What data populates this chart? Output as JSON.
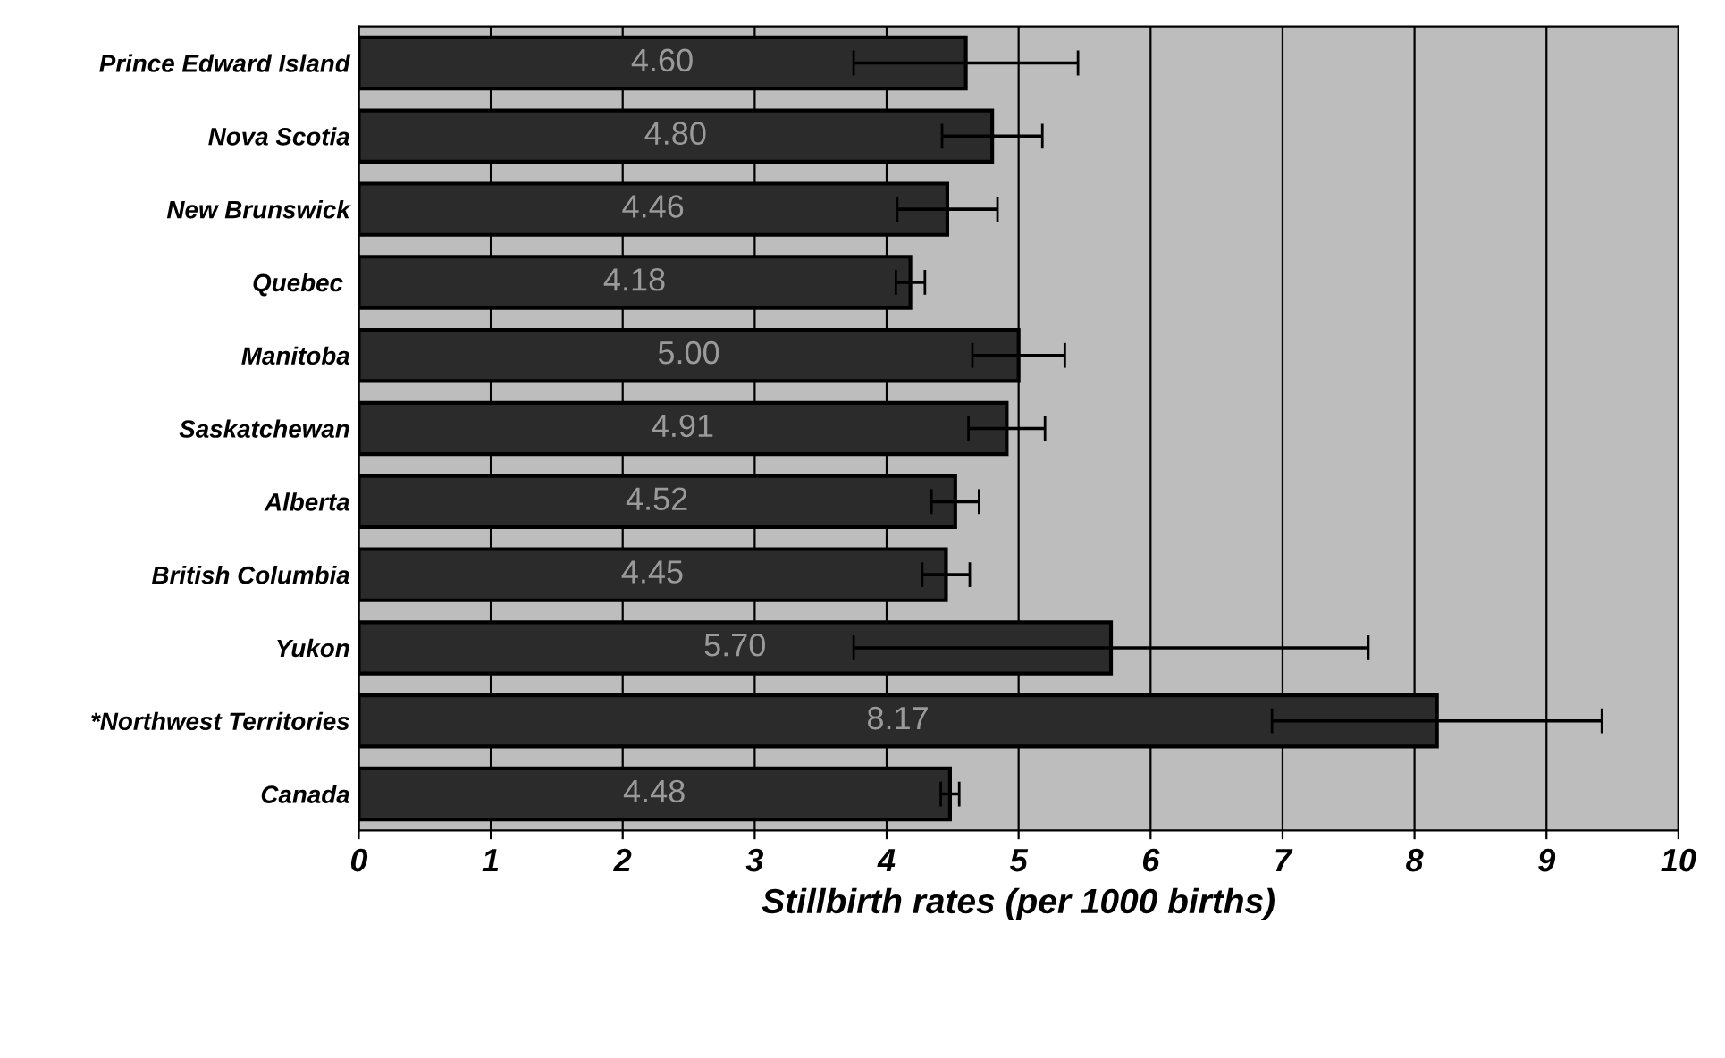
{
  "chart_data": {
    "type": "bar",
    "orientation": "horizontal",
    "xlabel": "Stillbirth rates (per 1000 births)",
    "categories": [
      "Prince Edward Island",
      "Nova Scotia",
      "New Brunswick",
      "Quebec ",
      "Manitoba",
      "Saskatchewan",
      "Alberta",
      "British Columbia",
      "Yukon",
      "*Northwest Territories",
      "Canada"
    ],
    "values": [
      4.6,
      4.8,
      4.46,
      4.18,
      5.0,
      4.91,
      4.52,
      4.45,
      5.7,
      8.17,
      4.48
    ],
    "value_labels": [
      "4.60",
      "4.80",
      "4.46",
      "4.18",
      "5.00",
      "4.91",
      "4.52",
      "4.45",
      "5.70",
      "8.17",
      "4.48"
    ],
    "errors": [
      0.85,
      0.38,
      0.38,
      0.11,
      0.35,
      0.29,
      0.18,
      0.18,
      1.95,
      1.25,
      0.07
    ],
    "color": "#2b2b2b",
    "xlim": [
      0,
      10
    ],
    "xticks": [
      0,
      1,
      2,
      3,
      4,
      5,
      6,
      7,
      8,
      9,
      10
    ],
    "grid": "x"
  }
}
